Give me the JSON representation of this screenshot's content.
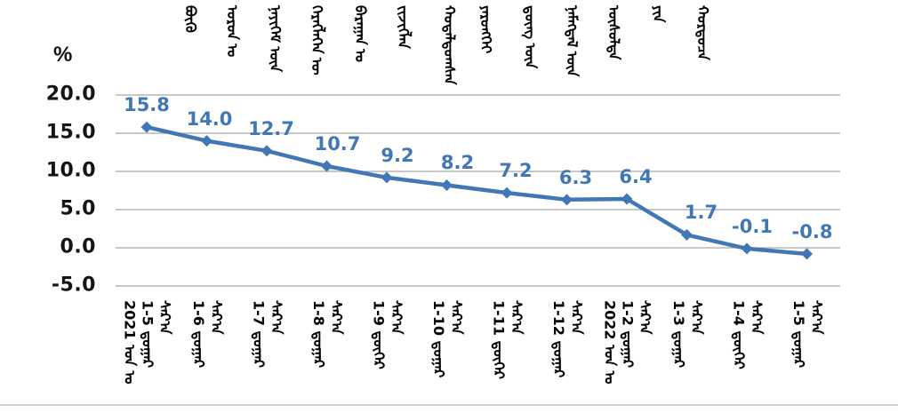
{
  "unit_label": "%",
  "colors": {
    "line": "#4277b5",
    "data_label": "#4277b5",
    "gridline": "#a6a6a6",
    "axis_text": "#141414",
    "divider": "#d0d0d0",
    "background": "#ffffff"
  },
  "chart_data": {
    "type": "line",
    "title_mongolian_words": [
      "ᠪᠦᠬᠦ",
      "ᠣᠷᠣᠨ ᠤ",
      "ᠨᠡᠶᠢᠭᠡᠮ ᠦᠨ",
      "ᠬᠡᠷᠡᠭᠯᠡᠭᠡᠨ ᠦ",
      "ᠪᠠᠷᠠᠭᠠᠨ ᠤ",
      "ᠵᠢᠵᠢᠭᠯᠡᠨ",
      "ᠬᠤᠳᠠᠯᠳᠤᠭᠰᠠᠨ",
      "ᠶᠡᠷᠦᠩᠬᠡᠢ",
      "ᠳ᠋ᠦᠩ ᠦᠨ",
      "ᠨᠡᠮᠡᠭᠳᠡᠯ ᠦᠨ",
      "ᠥᠰᠦᠯᠲᠡ",
      "ᠶᠢᠨ",
      "ᠬᠤᠷᠳᠤᠴᠠ"
    ],
    "ylabel": "%",
    "ylim": [
      -5,
      20
    ],
    "ytick_values": [
      20,
      15,
      10,
      5,
      0,
      -5
    ],
    "ytick_labels": [
      "20.0",
      "15.0",
      "10.0",
      "5.0",
      "0.0",
      "-5.0"
    ],
    "grid": true,
    "legend": "none",
    "marker": "diamond",
    "categories": [
      "2021 1-5",
      "1-6",
      "1-7",
      "1-8",
      "1-9",
      "1-10",
      "1-11",
      "1-12",
      "2022 1-2",
      "1-3",
      "1-4",
      "1-5"
    ],
    "x_tick_columns": [
      [
        "2021 ᠣᠨ ᠤ",
        "1-5 ᠳ᠋ᠤᠭᠠᠷ",
        "ᠰᠠᠷ᠎ᠠ"
      ],
      [
        "1-6 ᠳ᠋ᠤᠭᠠᠷ",
        "ᠰᠠᠷ᠎ᠠ"
      ],
      [
        "1-7 ᠳ᠋ᠤᠭᠠᠷ",
        "ᠰᠠᠷ᠎ᠠ"
      ],
      [
        "1-8 ᠳ᠋ᠤᠭᠠᠷ",
        "ᠰᠠᠷ᠎ᠠ"
      ],
      [
        "1-9 ᠳ᠋ᠦᠭᠡᠷ",
        "ᠰᠠᠷ᠎ᠠ"
      ],
      [
        "1-10 ᠳ᠋ᠤᠭᠠᠷ",
        "ᠰᠠᠷ᠎ᠠ"
      ],
      [
        "1-11 ᠳ᠋ᠦᠭᠡᠷ",
        "ᠰᠠᠷ᠎ᠠ"
      ],
      [
        "1-12 ᠳ᠋ᠤᠭᠠᠷ",
        "ᠰᠠᠷ᠎ᠠ"
      ],
      [
        "2022 ᠣᠨ ᠤ",
        "1-2 ᠳ᠋ᠤᠭᠠᠷ",
        "ᠰᠠᠷ᠎ᠠ"
      ],
      [
        "1-3 ᠳ᠋ᠤᠭᠠᠷ",
        "ᠰᠠᠷ᠎ᠠ"
      ],
      [
        "1-4 ᠳ᠋ᠦᠭᠡᠷ",
        "ᠰᠠᠷ᠎ᠠ"
      ],
      [
        "1-5 ᠳ᠋ᠤᠭᠠᠷ",
        "ᠰᠠᠷ᠎ᠠ"
      ]
    ],
    "values": [
      15.8,
      14.0,
      12.7,
      10.7,
      9.2,
      8.2,
      7.2,
      6.3,
      6.4,
      1.7,
      -0.1,
      -0.8
    ],
    "data_labels": [
      "15.8",
      "14.0",
      "12.7",
      "10.7",
      "9.2",
      "8.2",
      "7.2",
      "6.3",
      "6.4",
      "1.7",
      "-0.1",
      "-0.8"
    ]
  }
}
